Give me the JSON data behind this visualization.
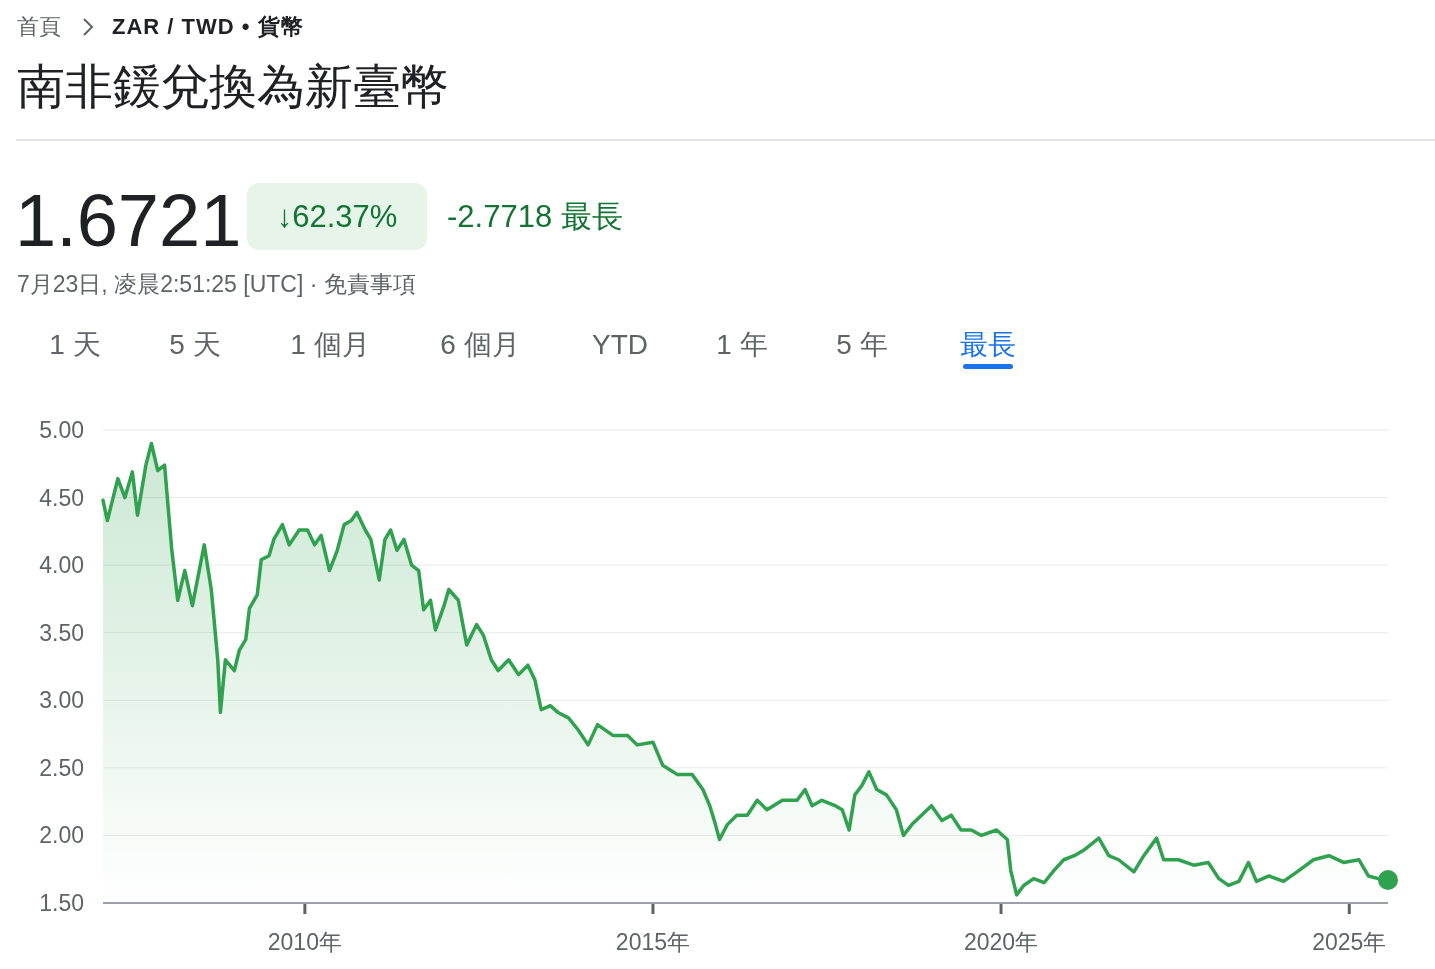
{
  "chart_data": {
    "type": "area",
    "title": "南非鍰兌換為新臺幣",
    "annotations": [
      "首頁",
      "ZAR / TWD • 貨幣",
      "1.6721",
      "↓62.37%",
      "-2.7718 最長",
      "7月23日, 凌晨2:51:25 [UTC] · 免責事項",
      "1 天",
      "5 天",
      "1 個月",
      "6 個月",
      "YTD",
      "1 年",
      "5 年",
      "最長"
    ],
    "series": [
      {
        "color": "#30a14e",
        "x": [
          "2007-02-07",
          "2007-03-02",
          "2007-04-26",
          "2007-06-02",
          "2007-07-11",
          "2007-08-07",
          "2007-09-20",
          "2007-10-19",
          "2007-11-21",
          "2007-12-27",
          "2008-02-03",
          "2008-03-05",
          "2008-04-11",
          "2008-05-21",
          "2008-07-22",
          "2008-08-28",
          "2008-10-01",
          "2008-10-15",
          "2008-11-10",
          "2008-12-27",
          "2009-01-22",
          "2009-02-25",
          "2009-03-16",
          "2009-04-26",
          "2009-05-17",
          "2009-06-27",
          "2009-07-22",
          "2009-09-05",
          "2009-10-11",
          "2009-12-02",
          "2010-01-15",
          "2010-02-21",
          "2010-03-27",
          "2010-05-10",
          "2010-06-20",
          "2010-07-26",
          "2010-09-02",
          "2010-10-01",
          "2010-11-14",
          "2010-12-13",
          "2011-01-26",
          "2011-02-25",
          "2011-03-27",
          "2011-04-29",
          "2011-06-05",
          "2011-07-15",
          "2011-08-21",
          "2011-09-16",
          "2011-10-22",
          "2011-11-17",
          "2012-01-01",
          "2012-01-26",
          "2012-03-16",
          "2012-04-29",
          "2012-06-20",
          "2012-07-26",
          "2012-09-05",
          "2012-10-11",
          "2012-12-05",
          "2013-01-26",
          "2013-03-16",
          "2013-04-22",
          "2013-05-25",
          "2013-07-11",
          "2013-08-21",
          "2013-10-15",
          "2013-12-05",
          "2014-01-26",
          "2014-03-16",
          "2014-06-05",
          "2014-08-21",
          "2014-10-11",
          "2015-01-01",
          "2015-02-21",
          "2015-05-10",
          "2015-07-26",
          "2015-09-20",
          "2015-10-26",
          "2015-11-25",
          "2015-12-16",
          "2016-01-26",
          "2016-03-16",
          "2016-05-10",
          "2016-07-01",
          "2016-08-21",
          "2016-11-10",
          "2017-01-26",
          "2017-03-09",
          "2017-04-15",
          "2017-06-05",
          "2017-08-14",
          "2017-09-20",
          "2017-10-26",
          "2017-11-25",
          "2018-01-01",
          "2018-02-07",
          "2018-03-20",
          "2018-05-10",
          "2018-07-01",
          "2018-08-07",
          "2018-09-20",
          "2018-11-10",
          "2019-01-01",
          "2019-02-25",
          "2019-04-15",
          "2019-06-05",
          "2019-07-29",
          "2019-09-20",
          "2019-12-09",
          "2020-02-03",
          "2020-02-21",
          "2020-03-23",
          "2020-04-29",
          "2020-06-20",
          "2020-08-14",
          "2020-10-04",
          "2020-11-25",
          "2021-01-19",
          "2021-03-09",
          "2021-05-28",
          "2021-07-19",
          "2021-09-09",
          "2021-11-28",
          "2022-01-19",
          "2022-03-27",
          "2022-05-03",
          "2022-07-19",
          "2022-10-08",
          "2022-12-23",
          "2023-02-17",
          "2023-04-08",
          "2023-06-02",
          "2023-07-22",
          "2023-09-02",
          "2023-11-07",
          "2024-01-22",
          "2024-04-11",
          "2024-06-27",
          "2024-09-16",
          "2024-12-02",
          "2025-02-21",
          "2025-04-11",
          "2025-06-02",
          "2025-07-23"
        ],
        "values": [
          4.48,
          4.33,
          4.64,
          4.5,
          4.69,
          4.37,
          4.74,
          4.9,
          4.7,
          4.74,
          4.11,
          3.74,
          3.96,
          3.7,
          4.15,
          3.82,
          3.3,
          2.91,
          3.3,
          3.22,
          3.37,
          3.45,
          3.68,
          3.78,
          4.04,
          4.07,
          4.19,
          4.3,
          4.15,
          4.26,
          4.26,
          4.15,
          4.22,
          3.96,
          4.11,
          4.3,
          4.33,
          4.39,
          4.26,
          4.19,
          3.89,
          4.19,
          4.26,
          4.11,
          4.19,
          4.0,
          3.96,
          3.67,
          3.74,
          3.52,
          3.7,
          3.82,
          3.74,
          3.41,
          3.56,
          3.48,
          3.3,
          3.22,
          3.3,
          3.19,
          3.26,
          3.15,
          2.93,
          2.96,
          2.91,
          2.87,
          2.78,
          2.67,
          2.82,
          2.74,
          2.74,
          2.67,
          2.69,
          2.52,
          2.45,
          2.45,
          2.34,
          2.22,
          2.08,
          1.97,
          2.08,
          2.15,
          2.15,
          2.26,
          2.19,
          2.26,
          2.26,
          2.34,
          2.22,
          2.26,
          2.22,
          2.19,
          2.04,
          2.3,
          2.37,
          2.47,
          2.34,
          2.3,
          2.19,
          2.0,
          2.08,
          2.15,
          2.22,
          2.11,
          2.15,
          2.04,
          2.04,
          2.0,
          2.04,
          1.97,
          1.74,
          1.56,
          1.63,
          1.68,
          1.65,
          1.74,
          1.82,
          1.85,
          1.89,
          1.98,
          1.85,
          1.82,
          1.73,
          1.85,
          1.98,
          1.82,
          1.82,
          1.78,
          1.8,
          1.68,
          1.63,
          1.66,
          1.8,
          1.66,
          1.7,
          1.66,
          1.74,
          1.82,
          1.85,
          1.8,
          1.82,
          1.7,
          1.68,
          1.67
        ]
      },
      {
        "type": "scatter",
        "color": "#30a14e",
        "x": [
          "2025-07-23"
        ],
        "values": [
          1.67
        ]
      }
    ],
    "xlim": [
      "2007-02-07",
      "2025-07-23"
    ],
    "xticks": [
      {
        "value": "2010-01-01",
        "label": "2010年"
      },
      {
        "value": "2015-01-01",
        "label": "2015年"
      },
      {
        "value": "2020-01-01",
        "label": "2020年"
      },
      {
        "value": "2025-01-01",
        "label": "2025年"
      }
    ],
    "ylim": [
      1.5,
      5
    ],
    "yticks": [
      {
        "value": 1.5,
        "label": "1.50"
      },
      {
        "value": 2,
        "label": "2.00"
      },
      {
        "value": 2.5,
        "label": "2.50"
      },
      {
        "value": 3,
        "label": "3.00"
      },
      {
        "value": 3.5,
        "label": "3.50"
      },
      {
        "value": 4,
        "label": "4.00"
      },
      {
        "value": 4.5,
        "label": "4.50"
      },
      {
        "value": 5,
        "label": "5.00"
      }
    ],
    "grid": "y"
  }
}
